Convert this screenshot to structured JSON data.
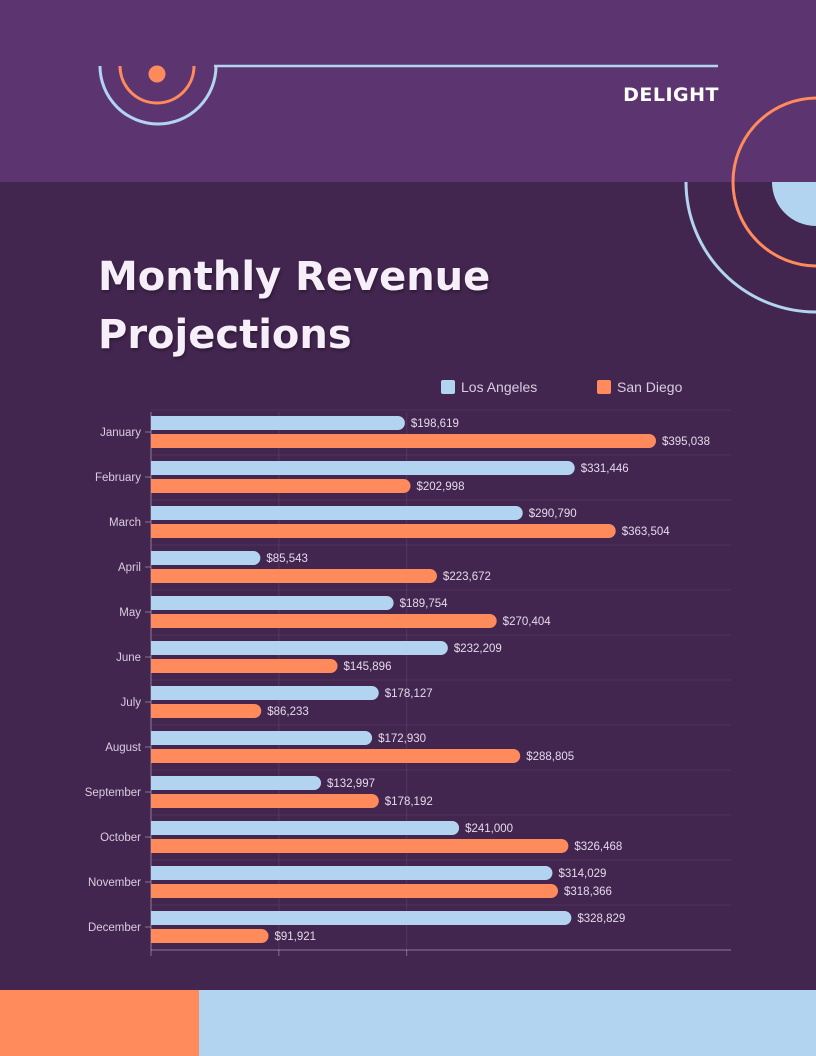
{
  "brand": "DELIGHT",
  "title_line1": "Monthly Revenue",
  "title_line2": "Projections",
  "colors": {
    "header": "#5c3570",
    "background": "#43264f",
    "los_angeles": "#b3d4f0",
    "san_diego": "#ff8a5c"
  },
  "chart_data": {
    "type": "bar",
    "orientation": "horizontal",
    "categories": [
      "January",
      "February",
      "March",
      "April",
      "May",
      "June",
      "July",
      "August",
      "September",
      "October",
      "November",
      "December"
    ],
    "series": [
      {
        "name": "Los Angeles",
        "values": [
          198619,
          331446,
          290790,
          85543,
          189754,
          232209,
          178127,
          172930,
          132997,
          241000,
          314029,
          328829
        ]
      },
      {
        "name": "San Diego",
        "values": [
          395038,
          202998,
          363504,
          223672,
          270404,
          145896,
          86233,
          288805,
          178192,
          326468,
          318366,
          91921
        ]
      }
    ],
    "data_labels": [
      [
        "$198,619",
        "$331,446",
        "$290,790",
        "$85,543",
        "$189,754",
        "$232,209",
        "$178,127",
        "$172,930",
        "$132,997",
        "$241,000",
        "$314,029",
        "$328,829"
      ],
      [
        "$395,038",
        "$202,998",
        "$363,504",
        "$223,672",
        "$270,404",
        "$145,896",
        "$86,233",
        "$288,805",
        "$178,192",
        "$326,468",
        "$318,366",
        "$91,921"
      ]
    ],
    "xlim": [
      0,
      450000
    ],
    "legend_position": "top-right",
    "grid": true
  }
}
